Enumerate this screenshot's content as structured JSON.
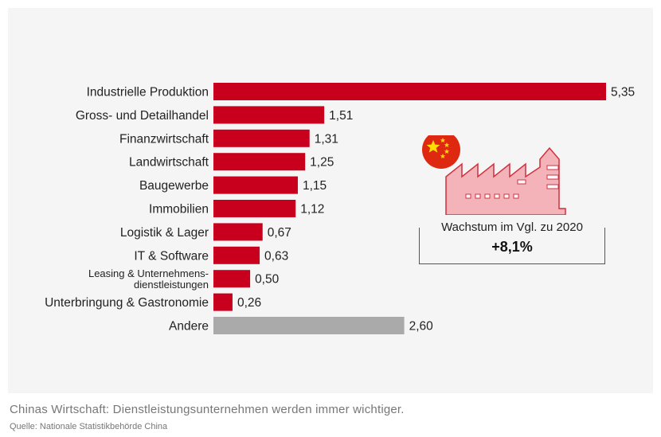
{
  "chart_data": {
    "type": "bar",
    "orientation": "horizontal",
    "categories": [
      "Industrielle Produktion",
      "Gross- und Detailhandel",
      "Finanzwirtschaft",
      "Landwirtschaft",
      "Baugewerbe",
      "Immobilien",
      "Logistik & Lager",
      "IT & Software",
      "Leasing & Unternehmens-\ndienstleistungen",
      "Unterbringung & Gastronomie",
      "Andere"
    ],
    "values": [
      5.35,
      1.51,
      1.31,
      1.25,
      1.15,
      1.12,
      0.67,
      0.63,
      0.5,
      0.26,
      2.6
    ],
    "value_labels": [
      "5,35",
      "1,51",
      "1,31",
      "1,25",
      "1,15",
      "1,12",
      "0,67",
      "0,63",
      "0,50",
      "0,26",
      "2,60"
    ],
    "colors": [
      "#c8001e",
      "#c8001e",
      "#c8001e",
      "#c8001e",
      "#c8001e",
      "#c8001e",
      "#c8001e",
      "#c8001e",
      "#c8001e",
      "#c8001e",
      "#aaaaaa"
    ],
    "xlim": [
      0,
      5.35
    ],
    "grid": false,
    "title": "",
    "xlabel": "",
    "ylabel": ""
  },
  "callout": {
    "label": "Wachstum im Vgl. zu 2020",
    "value": "+8,1%"
  },
  "illustration": {
    "icons": [
      "china-flag-icon",
      "factory-icon"
    ],
    "flag_color": "#de2910",
    "star_color": "#ffde00",
    "factory_fill": "#f4b3b8",
    "factory_stroke": "#d0303e"
  },
  "caption": "Chinas Wirtschaft: Dienstleistungsunternehmen werden immer wichtiger.",
  "source": "Quelle: Nationale Statistikbehörde China"
}
